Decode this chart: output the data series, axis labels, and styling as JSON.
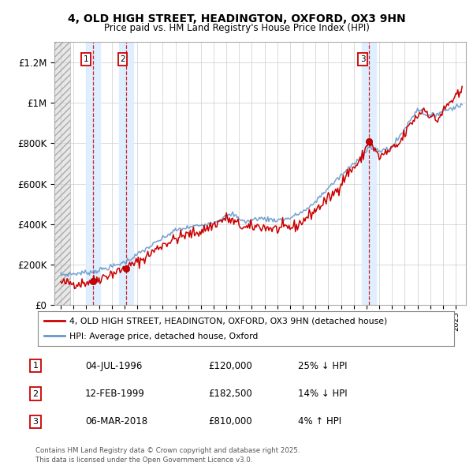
{
  "title": "4, OLD HIGH STREET, HEADINGTON, OXFORD, OX3 9HN",
  "subtitle": "Price paid vs. HM Land Registry's House Price Index (HPI)",
  "legend_line1": "4, OLD HIGH STREET, HEADINGTON, OXFORD, OX3 9HN (detached house)",
  "legend_line2": "HPI: Average price, detached house, Oxford",
  "transaction_color": "#cc0000",
  "hpi_color": "#6699cc",
  "transactions": [
    {
      "date_num": 1996.51,
      "price": 120000,
      "label": "1"
    },
    {
      "date_num": 1999.12,
      "price": 182500,
      "label": "2"
    },
    {
      "date_num": 2018.18,
      "price": 810000,
      "label": "3"
    }
  ],
  "sale_annotations": [
    {
      "label": "1",
      "date": "04-JUL-1996",
      "price": "£120,000",
      "pct": "25% ↓ HPI"
    },
    {
      "label": "2",
      "date": "12-FEB-1999",
      "price": "£182,500",
      "pct": "14% ↓ HPI"
    },
    {
      "label": "3",
      "date": "06-MAR-2018",
      "price": "£810,000",
      "pct": "4% ↑ HPI"
    }
  ],
  "ylabel_ticks": [
    "£0",
    "£200K",
    "£400K",
    "£600K",
    "£800K",
    "£1M",
    "£1.2M"
  ],
  "ytick_values": [
    0,
    200000,
    400000,
    600000,
    800000,
    1000000,
    1200000
  ],
  "ylim": [
    0,
    1300000
  ],
  "xlim_start": 1993.5,
  "xlim_end": 2025.8,
  "hatch_end": 1994.75,
  "footer": "Contains HM Land Registry data © Crown copyright and database right 2025.\nThis data is licensed under the Open Government Licence v3.0.",
  "background_color": "#ffffff",
  "plot_bg_color": "#ffffff",
  "grid_color": "#cccccc",
  "sale_band_color": "#ddeeff",
  "hatch_bg_color": "#e8e8e8"
}
